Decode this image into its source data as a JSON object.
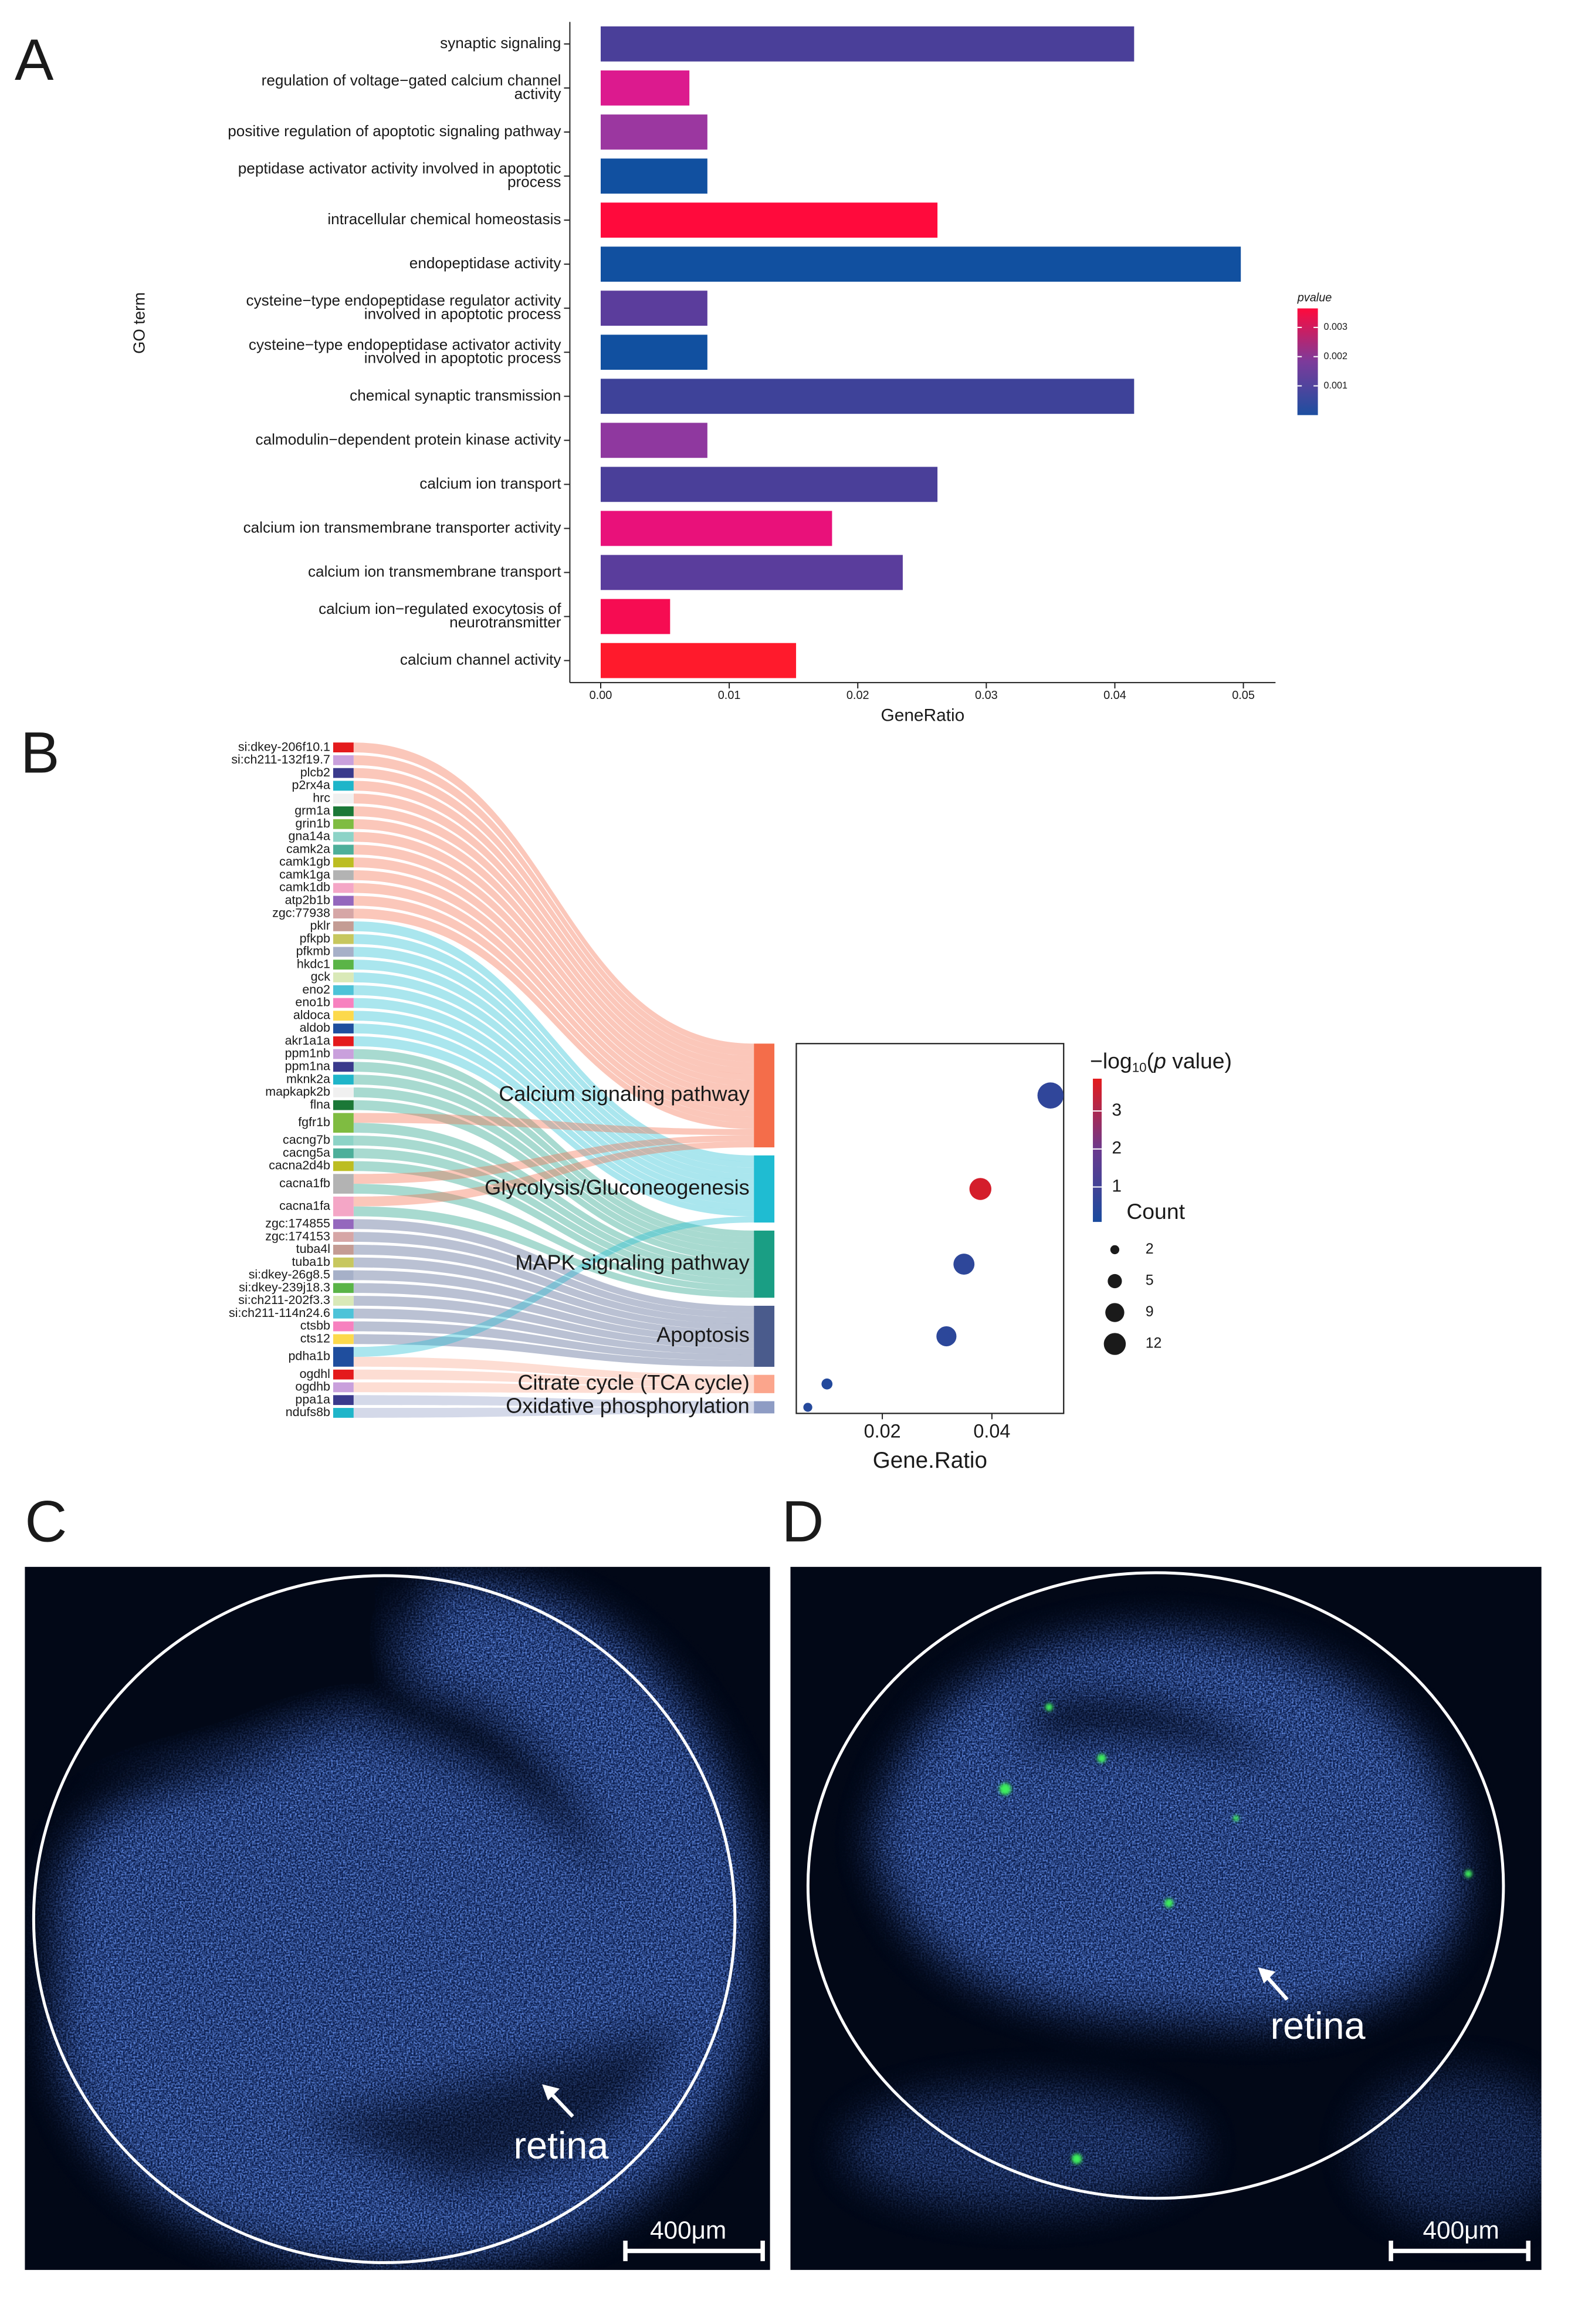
{
  "panel_labels": [
    "A",
    "B",
    "C",
    "D"
  ],
  "chart_data": [
    {
      "type": "bar",
      "orientation": "horizontal",
      "categories": [
        [
          "synaptic signaling"
        ],
        [
          "regulation of voltage−gated calcium channel",
          "activity"
        ],
        [
          "positive regulation of apoptotic signaling pathway"
        ],
        [
          "peptidase activator activity involved in apoptotic",
          "process"
        ],
        [
          "intracellular chemical homeostasis"
        ],
        [
          "endopeptidase activity"
        ],
        [
          "cysteine−type endopeptidase regulator activity",
          "involved in apoptotic process"
        ],
        [
          "cysteine−type endopeptidase activator activity",
          "involved in apoptotic process"
        ],
        [
          "chemical synaptic transmission"
        ],
        [
          "calmodulin−dependent protein kinase activity"
        ],
        [
          "calcium ion transport"
        ],
        [
          "calcium ion transmembrane transporter activity"
        ],
        [
          "calcium ion transmembrane transport"
        ],
        [
          "calcium ion−regulated exocytosis of",
          "neurotransmitter"
        ],
        [
          "calcium channel activity"
        ]
      ],
      "values": [
        0.0415,
        0.0069,
        0.0083,
        0.0083,
        0.0262,
        0.0498,
        0.0083,
        0.0083,
        0.0415,
        0.0083,
        0.0262,
        0.018,
        0.0235,
        0.0054,
        0.0152
      ],
      "colors": [
        "#4a3f99",
        "#dc1a8e",
        "#9b37a0",
        "#1150a0",
        "#ff0a3c",
        "#1150a0",
        "#5b3d9c",
        "#1150a0",
        "#3e4299",
        "#8f389f",
        "#4a3f99",
        "#e9117a",
        "#5a3d9c",
        "#f60c52",
        "#ff1a2c"
      ],
      "xlim": [
        -0.0024,
        0.0525
      ],
      "xticks": [
        {
          "value": 0,
          "label": "0.00"
        },
        0.01,
        0.02,
        0.03,
        0.04,
        0.05
      ],
      "xlabel": "GeneRatio",
      "ylabel": "GO term",
      "colorbar": {
        "title": "pvalue",
        "lim": [
          0,
          0.00365
        ],
        "ticks": [
          0.001,
          0.002,
          0.003
        ],
        "colors": [
          "#1d4fa0",
          "#7c3b9b",
          "#ff0a3c"
        ]
      }
    },
    {
      "type": "sankey",
      "nodes": [
        "si:dkey-206f10.1",
        "si:ch211-132f19.7",
        "plcb2",
        "p2rx4a",
        "hrc",
        "grm1a",
        "grin1b",
        "gna14a",
        "camk2a",
        "camk1gb",
        "camk1ga",
        "camk1db",
        "atp2b1b",
        "zgc:77938",
        "pklr",
        "pfkpb",
        "pfkmb",
        "hkdc1",
        "gck",
        "eno2",
        "eno1b",
        "aldoca",
        "aldob",
        "akr1a1a",
        "ppm1nb",
        "ppm1na",
        "mknk2a",
        "mapkapk2b",
        "flna",
        "fgfr1b",
        "cacng7b",
        "cacng5a",
        "cacna2d4b",
        "cacna1fb",
        "cacna1fa",
        "zgc:174855",
        "zgc:174153",
        "tuba4l",
        "tuba1b",
        "si:dkey-26g8.5",
        "si:dkey-239j18.3",
        "si:ch211-202f3.3",
        "si:ch211-114n24.6",
        "ctsbb",
        "cts12",
        "pdha1b",
        "ogdhl",
        "ogdhb",
        "ppa1a",
        "ndufs8b"
      ],
      "node_palette": [
        "#e41a1c",
        "#c9a0dc",
        "#3a3a8c",
        "#1fb5c9",
        "#f0f0f0",
        "#1b7837",
        "#7fbc41",
        "#8dd3c7",
        "#4daf9a",
        "#bcbd22",
        "#b3b3b3",
        "#f4a6c6",
        "#9467bd",
        "#d6a6a6",
        "#c49c94",
        "#c7c75e",
        "#a6b0c8",
        "#5ab447",
        "#d9e9b8",
        "#4dc3d8",
        "#f781bf",
        "#fcd94c",
        "#1f4e9e"
      ],
      "targets": [
        "Calcium signaling pathway",
        "Glycolysis/Gluconeogenesis",
        "MAPK signaling pathway",
        "Apoptosis",
        "Citrate cycle (TCA cycle)",
        "Oxidative phosphorylation"
      ],
      "target_colors": [
        "#f46d4a",
        "#1fbcd2",
        "#1a9e84",
        "#4a5b8c",
        "#fba58c",
        "#8e9cc4"
      ],
      "links": [
        {
          "source": 0,
          "target": 0,
          "value": 1
        },
        {
          "source": 1,
          "target": 0,
          "value": 1
        },
        {
          "source": 2,
          "target": 0,
          "value": 1
        },
        {
          "source": 3,
          "target": 0,
          "value": 1
        },
        {
          "source": 4,
          "target": 0,
          "value": 1
        },
        {
          "source": 5,
          "target": 0,
          "value": 1
        },
        {
          "source": 6,
          "target": 0,
          "value": 1
        },
        {
          "source": 7,
          "target": 0,
          "value": 1
        },
        {
          "source": 8,
          "target": 0,
          "value": 1
        },
        {
          "source": 9,
          "target": 0,
          "value": 1
        },
        {
          "source": 10,
          "target": 0,
          "value": 1
        },
        {
          "source": 11,
          "target": 0,
          "value": 1
        },
        {
          "source": 12,
          "target": 0,
          "value": 1
        },
        {
          "source": 13,
          "target": 0,
          "value": 1
        },
        {
          "source": 14,
          "target": 1,
          "value": 1
        },
        {
          "source": 15,
          "target": 1,
          "value": 1
        },
        {
          "source": 16,
          "target": 1,
          "value": 1
        },
        {
          "source": 17,
          "target": 1,
          "value": 1
        },
        {
          "source": 18,
          "target": 1,
          "value": 1
        },
        {
          "source": 19,
          "target": 1,
          "value": 1
        },
        {
          "source": 20,
          "target": 1,
          "value": 1
        },
        {
          "source": 21,
          "target": 1,
          "value": 1
        },
        {
          "source": 22,
          "target": 1,
          "value": 1
        },
        {
          "source": 23,
          "target": 1,
          "value": 1
        },
        {
          "source": 24,
          "target": 2,
          "value": 1
        },
        {
          "source": 25,
          "target": 2,
          "value": 1
        },
        {
          "source": 26,
          "target": 2,
          "value": 1
        },
        {
          "source": 27,
          "target": 2,
          "value": 1
        },
        {
          "source": 28,
          "target": 2,
          "value": 1
        },
        {
          "source": 29,
          "target": 0,
          "value": 1
        },
        {
          "source": 29,
          "target": 2,
          "value": 1
        },
        {
          "source": 30,
          "target": 2,
          "value": 1
        },
        {
          "source": 31,
          "target": 2,
          "value": 1
        },
        {
          "source": 32,
          "target": 2,
          "value": 1
        },
        {
          "source": 33,
          "target": 0,
          "value": 1
        },
        {
          "source": 33,
          "target": 2,
          "value": 1
        },
        {
          "source": 34,
          "target": 0,
          "value": 1
        },
        {
          "source": 34,
          "target": 2,
          "value": 1
        },
        {
          "source": 35,
          "target": 3,
          "value": 1
        },
        {
          "source": 36,
          "target": 3,
          "value": 1
        },
        {
          "source": 37,
          "target": 3,
          "value": 1
        },
        {
          "source": 38,
          "target": 3,
          "value": 1
        },
        {
          "source": 39,
          "target": 3,
          "value": 1
        },
        {
          "source": 40,
          "target": 3,
          "value": 1
        },
        {
          "source": 41,
          "target": 3,
          "value": 1
        },
        {
          "source": 42,
          "target": 3,
          "value": 1
        },
        {
          "source": 43,
          "target": 3,
          "value": 1
        },
        {
          "source": 44,
          "target": 3,
          "value": 1
        },
        {
          "source": 45,
          "target": 1,
          "value": 1
        },
        {
          "source": 45,
          "target": 4,
          "value": 1
        },
        {
          "source": 46,
          "target": 4,
          "value": 1
        },
        {
          "source": 47,
          "target": 4,
          "value": 1
        },
        {
          "source": 48,
          "target": 5,
          "value": 1
        },
        {
          "source": 49,
          "target": 5,
          "value": 1
        }
      ]
    },
    {
      "type": "dot",
      "x": [
        0.0507,
        0.0379,
        0.0349,
        0.0317,
        0.0099,
        0.0064
      ],
      "sizes": [
        17,
        12,
        11,
        10,
        3,
        2
      ],
      "color_values": [
        0.6,
        3.6,
        0.55,
        0.5,
        0.3,
        0.35
      ],
      "xlim": [
        0.0043,
        0.0531
      ],
      "xticks": [
        0.02,
        0.04
      ],
      "xlabel": "Gene.Ratio",
      "colorbar": {
        "title": [
          "−log",
          "10",
          "(",
          "p",
          " value)"
        ],
        "lim": [
          0.08,
          3.85
        ],
        "ticks": [
          1,
          2,
          3
        ],
        "colors": [
          "#1a4b9e",
          "#6a3a8e",
          "#e41a1c"
        ]
      },
      "size_legend": {
        "title": "Count",
        "ticks": [
          2,
          5,
          9,
          12
        ]
      }
    }
  ],
  "images": [
    {
      "annotation": "retina",
      "scale_bar": "400μm"
    },
    {
      "annotation": "retina",
      "scale_bar": "400μm"
    }
  ]
}
